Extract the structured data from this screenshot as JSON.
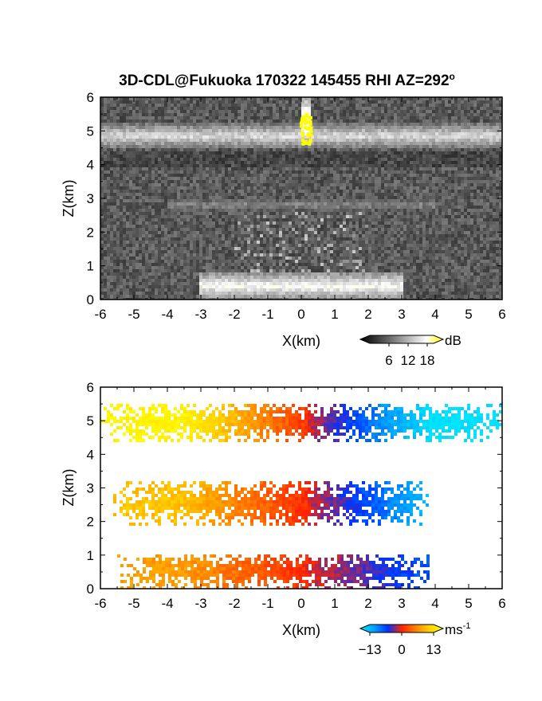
{
  "figure": {
    "title_main": "3D-CDL@Fukuoka 170322 145455 RHI AZ=292",
    "title_degree": "o"
  },
  "colors": {
    "reflectivity_ramp": [
      "#000000",
      "#3a3a3a",
      "#7a7a7a",
      "#bdbdbd",
      "#ffffff",
      "#ffff00"
    ],
    "velocity_ramp": [
      "#00e5ff",
      "#00a2ff",
      "#0033ff",
      "#ff2200",
      "#ff7f00",
      "#ffd000",
      "#ffff00"
    ],
    "frame": "#000000"
  },
  "chart_data": [
    {
      "type": "heatmap",
      "panel": "reflectivity",
      "xlabel": "X(km)",
      "ylabel": "Z(km)",
      "xlim": [
        -6,
        6
      ],
      "ylim": [
        0,
        6
      ],
      "xticks": [
        "-6",
        "-5",
        "-4",
        "-3",
        "-2",
        "-1",
        "0",
        "1",
        "2",
        "3",
        "4",
        "5",
        "6"
      ],
      "yticks": [
        "0",
        "1",
        "2",
        "3",
        "4",
        "5",
        "6"
      ],
      "colorbar": {
        "unit": "dB",
        "ticks": [
          "6",
          "12",
          "18"
        ],
        "range": [
          0,
          20
        ]
      },
      "features": [
        {
          "name": "bright layer",
          "z_km": [
            4.5,
            5.2
          ],
          "x_km": [
            -6,
            6
          ],
          "value_db": 14
        },
        {
          "name": "dark band",
          "z_km": [
            3.9,
            4.4
          ],
          "x_km": [
            -6,
            6
          ],
          "value_db": 3
        },
        {
          "name": "faint layer",
          "z_km": [
            2.6,
            3.0
          ],
          "x_km": [
            -4,
            4
          ],
          "value_db": 9
        },
        {
          "name": "near-surface return",
          "z_km": [
            0,
            0.8
          ],
          "x_km": [
            -3,
            3
          ],
          "value_db": 16
        },
        {
          "name": "vertical beam echo",
          "z_km": [
            4.6,
            6
          ],
          "x_km": [
            0,
            0.3
          ],
          "value_db": 19
        }
      ]
    },
    {
      "type": "heatmap",
      "panel": "doppler velocity",
      "xlabel": "X(km)",
      "ylabel": "Z(km)",
      "xlim": [
        -6,
        6
      ],
      "ylim": [
        0,
        6
      ],
      "xticks": [
        "-6",
        "-5",
        "-4",
        "-3",
        "-2",
        "-1",
        "0",
        "1",
        "2",
        "3",
        "4",
        "5",
        "6"
      ],
      "yticks": [
        "0",
        "1",
        "2",
        "3",
        "4",
        "5",
        "6"
      ],
      "colorbar": {
        "unit": "ms",
        "unit_exponent": "-1",
        "ticks": [
          "-13",
          "0",
          "13"
        ],
        "range": [
          -13,
          13
        ]
      },
      "layers": [
        {
          "name": "upper layer",
          "z_km": [
            4.4,
            5.5
          ],
          "x_km": [
            -6,
            6
          ],
          "velocity_left_ms": 12,
          "velocity_right_ms": -13
        },
        {
          "name": "middle layer",
          "z_km": [
            1.9,
            3.2
          ],
          "x_km": [
            -5.6,
            3.8
          ],
          "velocity_left_ms": 8,
          "velocity_right_ms": -11
        },
        {
          "name": "lower layer",
          "z_km": [
            0.0,
            1.0
          ],
          "x_km": [
            -5.5,
            3.8
          ],
          "velocity_left_ms": 6,
          "velocity_right_ms": -6
        }
      ]
    }
  ]
}
